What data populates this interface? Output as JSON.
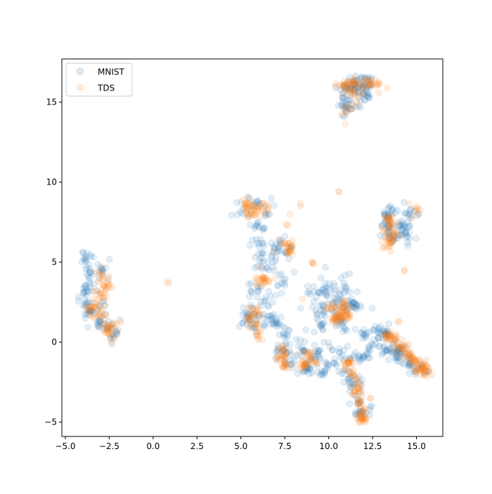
{
  "chart_data": {
    "type": "scatter",
    "title": "",
    "xlabel": "",
    "ylabel": "",
    "xlim": [
      -5.2,
      16.5
    ],
    "ylim": [
      -5.9,
      17.7
    ],
    "xticks": [
      -5.0,
      -2.5,
      0.0,
      2.5,
      5.0,
      7.5,
      10.0,
      12.5,
      15.0
    ],
    "xtick_labels": [
      "−5.0",
      "−2.5",
      "0.0",
      "2.5",
      "5.0",
      "7.5",
      "10.0",
      "12.5",
      "15.0"
    ],
    "yticks": [
      -5,
      0,
      5,
      10,
      15
    ],
    "ytick_labels": [
      "−5",
      "0",
      "5",
      "10",
      "15"
    ],
    "grid": false,
    "legend_position": "top-left",
    "point_alpha": 0.12,
    "series": [
      {
        "name": "MNIST",
        "color": "#1f77b4",
        "clusters": [
          {
            "points": [
              [
                -3.8,
                5.1
              ],
              [
                -3.6,
                4.4
              ],
              [
                -3.8,
                3.5
              ],
              [
                -3.9,
                2.7
              ],
              [
                -3.6,
                1.9
              ],
              [
                -3.1,
                1.3
              ],
              [
                -2.6,
                0.8
              ],
              [
                -2.1,
                0.5
              ],
              [
                -2.9,
                4.6
              ],
              [
                -2.8,
                2.6
              ]
            ],
            "spread": [
              0.2,
              0.3
            ],
            "n": 110
          },
          {
            "points": [
              [
                11.4,
                16.3
              ],
              [
                12.2,
                16.3
              ],
              [
                10.9,
                15.6
              ],
              [
                11.6,
                15.9
              ],
              [
                10.9,
                14.6
              ],
              [
                11.3,
                14.9
              ],
              [
                12.0,
                15.5
              ]
            ],
            "spread": [
              0.3,
              0.3
            ],
            "n": 100
          },
          {
            "points": [
              [
                13.6,
                8.2
              ],
              [
                14.6,
                8.1
              ],
              [
                13.4,
                7.3
              ],
              [
                14.3,
                7.2
              ],
              [
                13.6,
                6.4
              ],
              [
                14.5,
                6.6
              ]
            ],
            "spread": [
              0.28,
              0.28
            ],
            "n": 90
          },
          {
            "points": [
              [
                5.1,
                8.3
              ],
              [
                5.8,
                8.7
              ],
              [
                6.4,
                8.1
              ],
              [
                5.9,
                7.3
              ],
              [
                6.2,
                6.2
              ],
              [
                7.0,
                6.1
              ],
              [
                7.5,
                5.6
              ],
              [
                6.0,
                5.5
              ],
              [
                6.8,
                5.0
              ],
              [
                6.2,
                4.7
              ],
              [
                7.2,
                4.2
              ],
              [
                7.1,
                3.5
              ],
              [
                6.0,
                3.2
              ],
              [
                6.4,
                2.6
              ],
              [
                5.7,
                2.1
              ],
              [
                5.4,
                1.6
              ],
              [
                6.3,
                1.5
              ],
              [
                5.8,
                0.9
              ],
              [
                7.0,
                1.3
              ],
              [
                7.5,
                0.5
              ]
            ],
            "spread": [
              0.26,
              0.26
            ],
            "n": 180
          },
          {
            "points": [
              [
                7.4,
                -0.5
              ],
              [
                8.0,
                -1.2
              ],
              [
                8.8,
                -1.6
              ],
              [
                9.6,
                -1.8
              ],
              [
                10.3,
                -1.3
              ],
              [
                8.6,
                -0.5
              ],
              [
                9.4,
                -0.7
              ],
              [
                10.6,
                -0.4
              ],
              [
                11.2,
                -1.0
              ],
              [
                12.0,
                -0.9
              ],
              [
                11.3,
                -2.6
              ],
              [
                11.7,
                -3.6
              ],
              [
                11.8,
                -4.5
              ],
              [
                10.9,
                -2.0
              ]
            ],
            "spread": [
              0.26,
              0.26
            ],
            "n": 160
          },
          {
            "points": [
              [
                9.4,
                3.1
              ],
              [
                10.1,
                3.3
              ],
              [
                11.0,
                3.2
              ],
              [
                10.4,
                2.5
              ],
              [
                11.3,
                2.3
              ],
              [
                9.7,
                2.0
              ],
              [
                10.6,
                1.6
              ],
              [
                9.5,
                1.1
              ],
              [
                10.8,
                1.0
              ],
              [
                11.8,
                2.3
              ]
            ],
            "spread": [
              0.26,
              0.26
            ],
            "n": 110
          },
          {
            "points": [
              [
                12.0,
                0.5
              ],
              [
                12.8,
                0.6
              ],
              [
                13.4,
                0.5
              ],
              [
                12.5,
                -0.2
              ],
              [
                13.3,
                -0.5
              ],
              [
                14.0,
                -0.6
              ],
              [
                13.8,
                -1.0
              ],
              [
                14.6,
                -1.3
              ],
              [
                15.2,
                -1.7
              ]
            ],
            "spread": [
              0.25,
              0.25
            ],
            "n": 110
          },
          {
            "points": [
              [
                8.8,
                3.5
              ],
              [
                10.7,
                4.0
              ],
              [
                13.2,
                0.8
              ],
              [
                9.2,
                -0.2
              ]
            ],
            "spread": [
              0.5,
              0.5
            ],
            "n": 20
          }
        ]
      },
      {
        "name": "TDS",
        "color": "#ff7f0e",
        "clusters": [
          {
            "points": [
              [
                -2.9,
                4.2
              ],
              [
                -2.8,
                3.5
              ],
              [
                -3.0,
                2.8
              ],
              [
                -3.5,
                2.2
              ],
              [
                -3.1,
                1.6
              ],
              [
                -2.6,
                1.0
              ],
              [
                -2.4,
                0.8
              ]
            ],
            "spread": [
              0.2,
              0.28
            ],
            "n": 90
          },
          {
            "points": [
              [
                10.9,
                16.0
              ],
              [
                11.5,
                16.2
              ],
              [
                12.3,
                16.3
              ],
              [
                12.7,
                16.1
              ],
              [
                11.0,
                14.4
              ],
              [
                11.5,
                15.4
              ]
            ],
            "spread": [
              0.28,
              0.25
            ],
            "n": 80
          },
          {
            "points": [
              [
                13.4,
                7.8
              ],
              [
                13.5,
                7.2
              ],
              [
                13.7,
                6.6
              ],
              [
                13.5,
                6.2
              ],
              [
                15.0,
                8.2
              ]
            ],
            "spread": [
              0.2,
              0.25
            ],
            "n": 60
          },
          {
            "points": [
              [
                5.3,
                8.6
              ],
              [
                5.9,
                8.4
              ],
              [
                5.6,
                8.1
              ],
              [
                6.3,
                8.3
              ],
              [
                7.6,
                6.0
              ],
              [
                7.8,
                5.7
              ],
              [
                6.0,
                3.9
              ],
              [
                6.4,
                3.8
              ],
              [
                5.8,
                1.0
              ],
              [
                6.1,
                0.6
              ],
              [
                5.6,
                1.6
              ],
              [
                5.9,
                2.0
              ]
            ],
            "spread": [
              0.22,
              0.22
            ],
            "n": 130
          },
          {
            "points": [
              [
                10.2,
                2.1
              ],
              [
                10.6,
                1.8
              ],
              [
                10.9,
                2.3
              ],
              [
                10.4,
                1.4
              ],
              [
                11.1,
                1.6
              ]
            ],
            "spread": [
              0.18,
              0.22
            ],
            "n": 70
          },
          {
            "points": [
              [
                7.4,
                -0.4
              ],
              [
                7.3,
                -1.0
              ],
              [
                7.5,
                -1.4
              ],
              [
                8.8,
                -0.8
              ],
              [
                8.6,
                -1.5
              ],
              [
                9.2,
                -1.2
              ],
              [
                11.1,
                -1.3
              ],
              [
                11.4,
                -2.1
              ],
              [
                11.6,
                -2.9
              ],
              [
                11.8,
                -3.7
              ],
              [
                11.9,
                -4.5
              ],
              [
                11.9,
                -4.8
              ]
            ],
            "spread": [
              0.14,
              0.2
            ],
            "n": 150
          },
          {
            "points": [
              [
                13.4,
                0.4
              ],
              [
                13.9,
                0.0
              ],
              [
                14.2,
                -0.4
              ],
              [
                14.6,
                -0.8
              ],
              [
                14.9,
                -1.2
              ],
              [
                15.3,
                -1.6
              ],
              [
                15.4,
                -1.8
              ]
            ],
            "spread": [
              0.2,
              0.18
            ],
            "n": 110
          },
          {
            "points": [
              [
                0.9,
                3.7
              ],
              [
                7.8,
                8.0
              ],
              [
                8.4,
                8.5
              ],
              [
                10.6,
                9.4
              ],
              [
                13.1,
                5.9
              ],
              [
                14.3,
                4.5
              ],
              [
                8.5,
                2.7
              ],
              [
                9.1,
                4.9
              ],
              [
                7.6,
                7.3
              ],
              [
                14.0,
                1.3
              ],
              [
                12.4,
                -3.5
              ]
            ],
            "spread": [
              0.06,
              0.06
            ],
            "n": 11
          }
        ]
      }
    ]
  }
}
